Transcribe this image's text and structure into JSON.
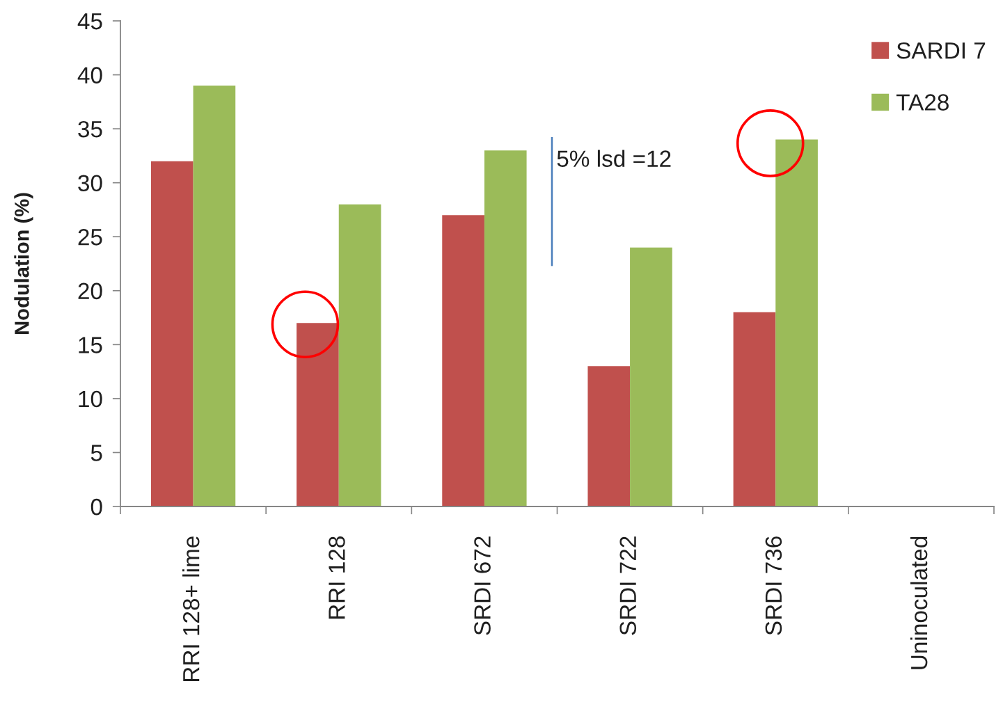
{
  "chart_data": {
    "type": "bar",
    "ylabel": "Nodulation (%)",
    "categories": [
      "RRI 128+ lime",
      "RRI 128",
      "SRDI 672",
      "SRDI 722",
      "SRDI 736",
      "Uninoculated"
    ],
    "series": [
      {
        "name": "SARDI 7",
        "color": "#c0504d",
        "values": [
          32,
          17,
          27,
          13,
          18,
          0
        ]
      },
      {
        "name": "TA28",
        "color": "#9bbb59",
        "values": [
          39,
          28,
          33,
          24,
          34,
          0
        ]
      }
    ],
    "ylim": [
      0,
      45
    ],
    "yticks": [
      0,
      5,
      10,
      15,
      20,
      25,
      30,
      35,
      40,
      45
    ],
    "legend": "top right",
    "annotations": [
      "5% lsd =12"
    ]
  }
}
